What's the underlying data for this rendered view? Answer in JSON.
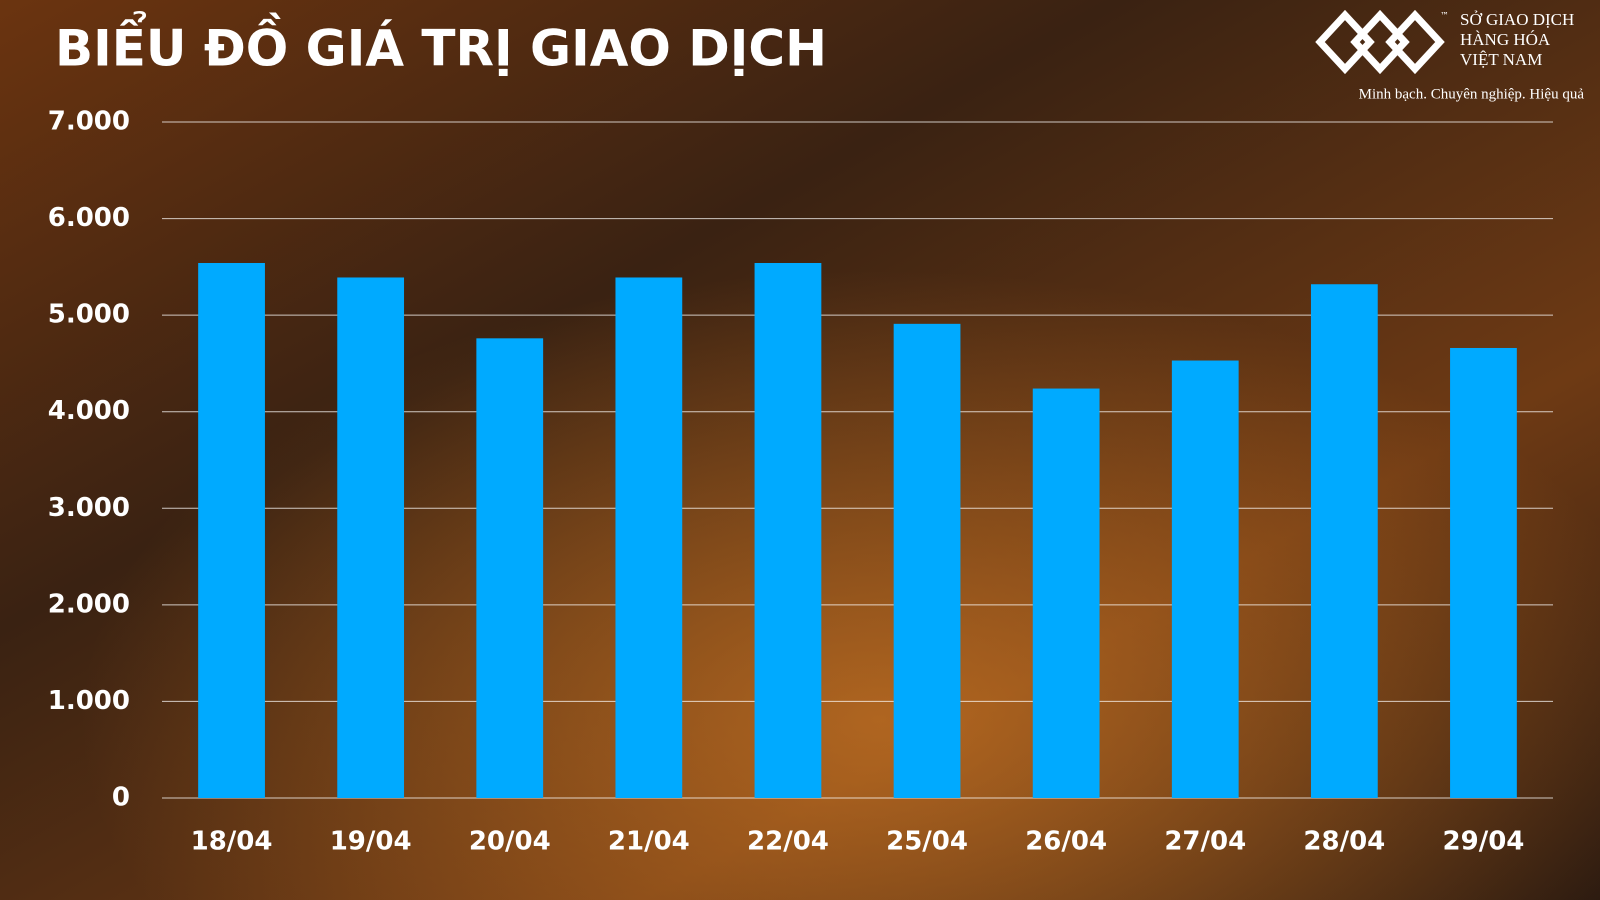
{
  "chart_data": {
    "type": "bar",
    "title": "BIỂU ĐỒ GIÁ TRỊ GIAO DỊCH",
    "logo_lines": [
      "SỞ GIAO DỊCH",
      "HÀNG HÓA",
      "VIỆT NAM"
    ],
    "logo_mark": "™",
    "tagline": "Minh bạch. Chuyên nghiệp. Hiệu quả",
    "categories": [
      "18/04",
      "19/04",
      "20/04",
      "21/04",
      "22/04",
      "25/04",
      "26/04",
      "27/04",
      "28/04",
      "29/04"
    ],
    "values": [
      5540,
      5390,
      4760,
      5390,
      5540,
      4910,
      4240,
      4530,
      5320,
      4660
    ],
    "color": "#00aaff",
    "ylim": [
      0,
      7000
    ],
    "yticks": [
      0,
      {
        "value": 1000,
        "label": "1.000"
      },
      {
        "value": 2000,
        "label": "2.000"
      },
      {
        "value": 3000,
        "label": "3.000"
      },
      {
        "value": 4000,
        "label": "4.000"
      },
      {
        "value": 5000,
        "label": "5.000"
      },
      {
        "value": 6000,
        "label": "6.000"
      },
      {
        "value": 7000,
        "label": "7.000"
      }
    ],
    "grid": true
  }
}
